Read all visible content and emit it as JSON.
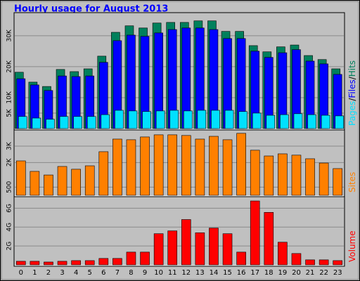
{
  "chart_data": [
    {
      "type": "bar",
      "title": "Hourly usage for August 2013",
      "ylim": [
        0,
        37000
      ],
      "yticks": [
        {
          "value": 5000,
          "label": "5K"
        },
        {
          "value": 10000,
          "label": "10K"
        },
        {
          "value": 20000,
          "label": "20K"
        },
        {
          "value": 30000,
          "label": "30K"
        }
      ],
      "grid": true,
      "legend_separator": "/",
      "series": [
        {
          "name": "Hits",
          "color": "#00805c",
          "values": [
            18200,
            15000,
            13600,
            19100,
            18400,
            19300,
            23400,
            31100,
            33200,
            32500,
            34100,
            34300,
            34300,
            34800,
            34800,
            31400,
            31400,
            26800,
            24800,
            26400,
            27000,
            23600,
            22300,
            19300
          ]
        },
        {
          "name": "Files",
          "color": "#0000ff",
          "values": [
            16100,
            14100,
            12300,
            17000,
            16800,
            17000,
            21400,
            28400,
            30200,
            29800,
            30900,
            32000,
            32500,
            32500,
            32000,
            29100,
            29100,
            25000,
            23000,
            24500,
            25500,
            21800,
            20900,
            17500
          ]
        },
        {
          "name": "Pages",
          "color": "#00e0ff",
          "values": [
            3900,
            3400,
            3000,
            3900,
            3900,
            3900,
            4500,
            5900,
            5700,
            5500,
            5700,
            5900,
            5700,
            5900,
            5900,
            5900,
            5500,
            5000,
            4300,
            4500,
            4800,
            4500,
            4300,
            4100
          ]
        }
      ]
    },
    {
      "type": "bar",
      "ylim": [
        0,
        3900
      ],
      "yticks": [
        500,
        {
          "value": 2000,
          "label": "2K"
        },
        {
          "value": 3000,
          "label": "3K"
        }
      ],
      "grid": true,
      "series": [
        {
          "name": "Sites",
          "color": "#ff8000",
          "values": [
            2100,
            1460,
            1240,
            1760,
            1590,
            1800,
            2660,
            3430,
            3390,
            3560,
            3690,
            3690,
            3650,
            3430,
            3600,
            3390,
            3780,
            2750,
            2400,
            2530,
            2450,
            2230,
            1970,
            1630
          ]
        }
      ]
    },
    {
      "type": "bar",
      "categories": [
        "0",
        "1",
        "2",
        "3",
        "4",
        "5",
        "6",
        "7",
        "8",
        "9",
        "10",
        "11",
        "12",
        "13",
        "14",
        "15",
        "16",
        "17",
        "18",
        "19",
        "20",
        "21",
        "22",
        "23"
      ],
      "ylim": [
        0,
        7.07
      ],
      "yticks": [
        {
          "value": 2,
          "label": "2G"
        },
        {
          "value": 4,
          "label": "4G"
        },
        {
          "value": 6,
          "label": "6G"
        }
      ],
      "grid": true,
      "series": [
        {
          "name": "Volume",
          "color": "#ff0000",
          "values": [
            0.38,
            0.38,
            0.3,
            0.38,
            0.45,
            0.45,
            0.68,
            0.68,
            1.35,
            1.35,
            3.3,
            3.6,
            4.8,
            3.4,
            3.9,
            3.3,
            1.35,
            6.77,
            5.56,
            2.4,
            1.2,
            0.53,
            0.53,
            0.45
          ]
        }
      ]
    }
  ]
}
